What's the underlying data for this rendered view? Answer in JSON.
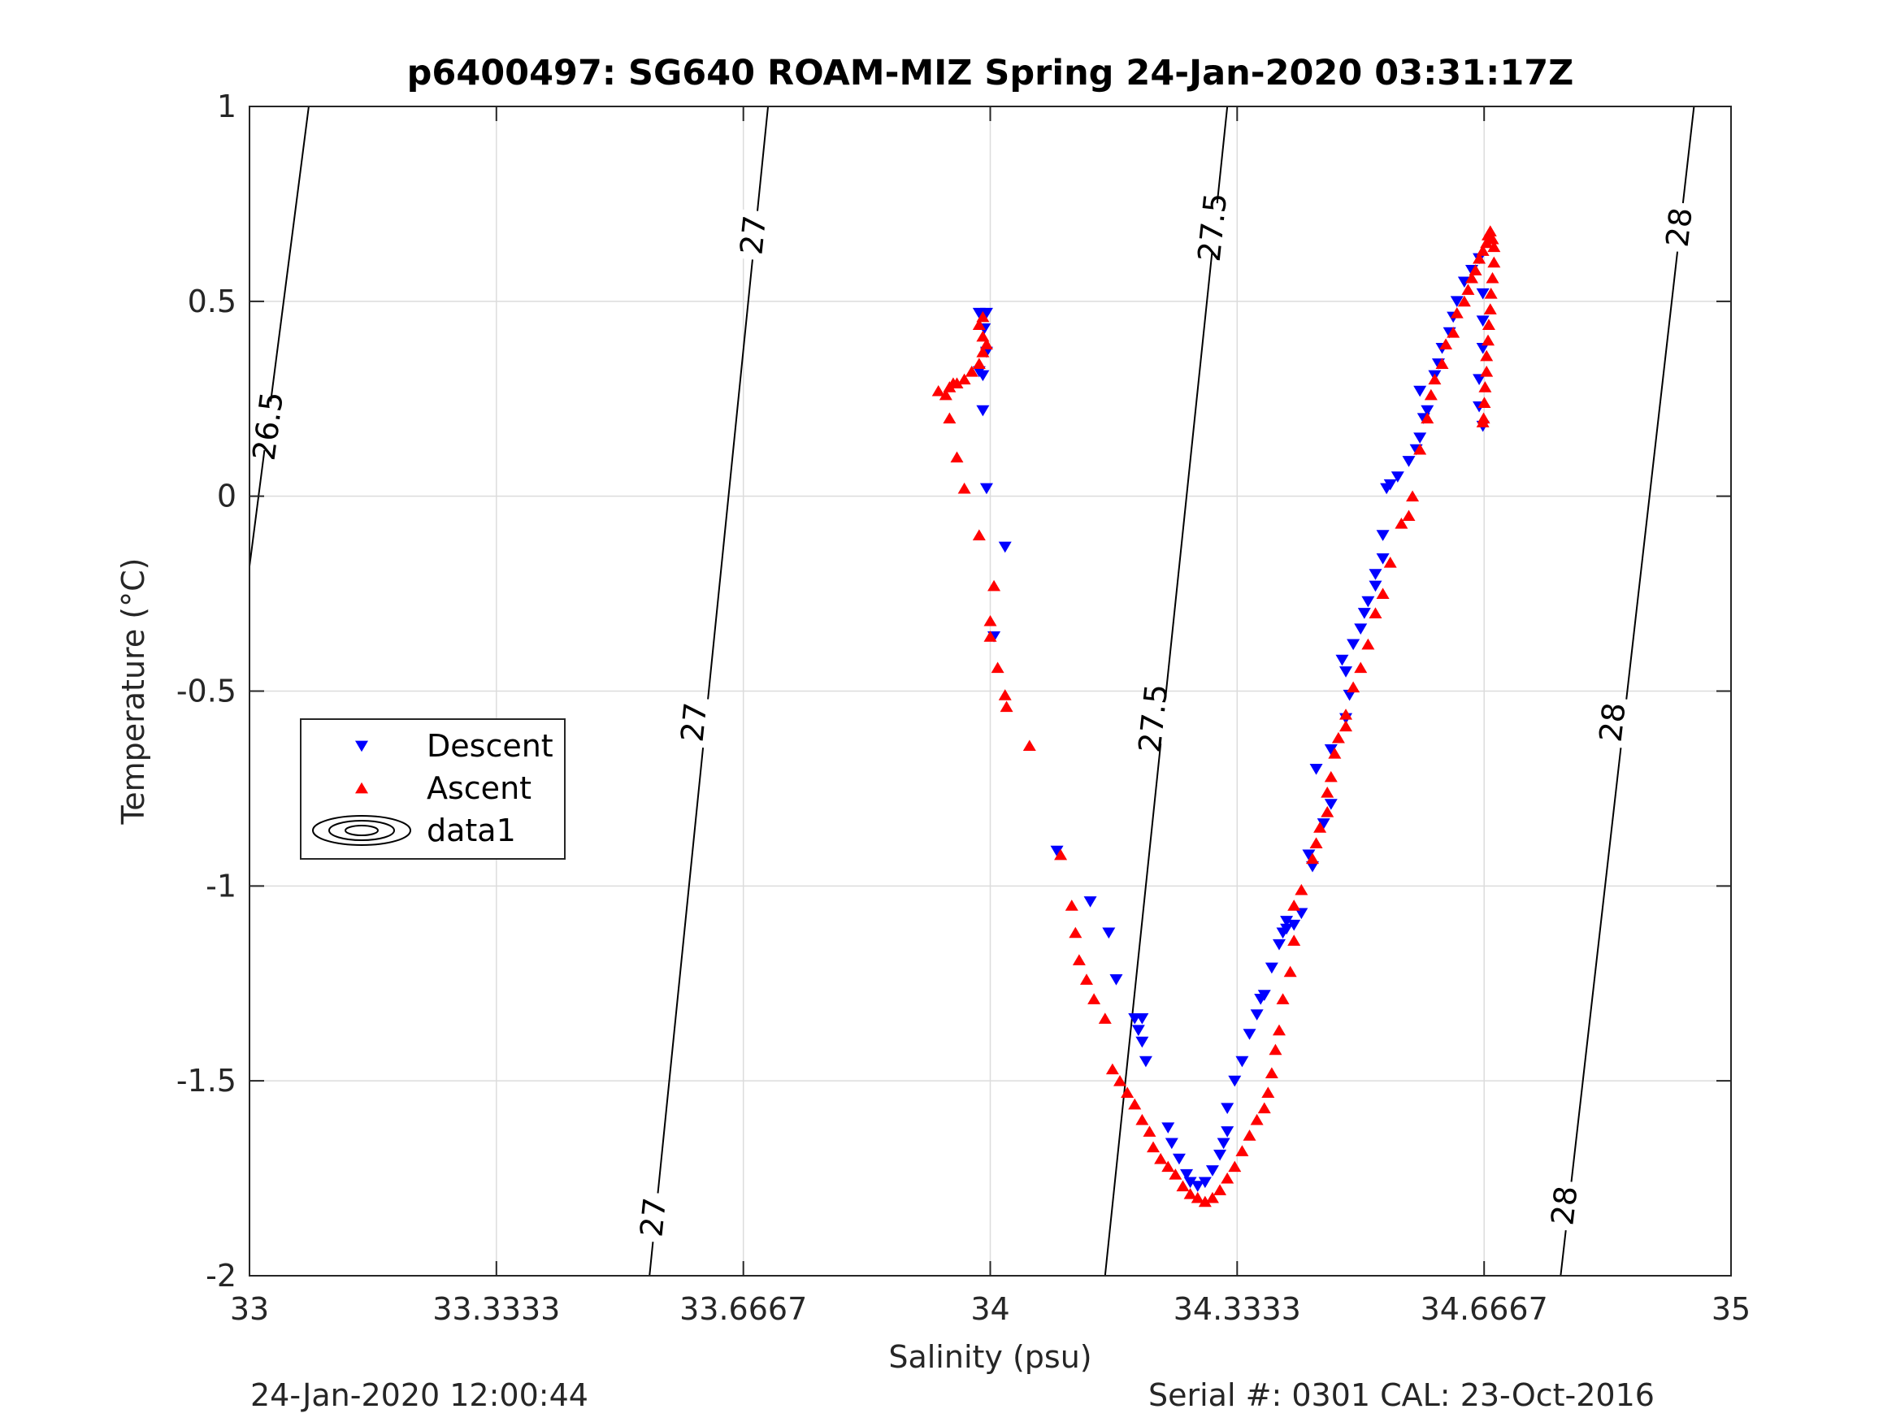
{
  "footer": {
    "left": "24-Jan-2020 12:00:44",
    "right": "Serial #: 0301  CAL: 23-Oct-2016"
  },
  "chart_data": {
    "type": "scatter",
    "title": "p6400497: SG640 ROAM-MIZ Spring 24-Jan-2020 03:31:17Z",
    "xlabel": "Salinity (psu)",
    "ylabel": "Temperature (°C)",
    "xlim": [
      33,
      35
    ],
    "ylim": [
      -2,
      1
    ],
    "xticks": [
      33,
      33.3333,
      33.6667,
      34,
      34.3333,
      34.6667,
      35
    ],
    "xtick_labels": [
      "33",
      "33.3333",
      "33.6667",
      "34",
      "34.3333",
      "34.6667",
      "35"
    ],
    "yticks": [
      -2,
      -1.5,
      -1,
      -0.5,
      0,
      0.5,
      1
    ],
    "ytick_labels": [
      "-2",
      "-1.5",
      "-1",
      "-0.5",
      "0",
      "0.5",
      "1"
    ],
    "grid": true,
    "legend_position": "left",
    "legend": [
      {
        "label": "Descent",
        "marker": "down-triangle",
        "color": "#0000ff"
      },
      {
        "label": "Ascent",
        "marker": "up-triangle",
        "color": "#ff0000"
      },
      {
        "label": "data1",
        "marker": "contour",
        "color": "#000000"
      }
    ],
    "density_contours": [
      {
        "label": "26.5",
        "points": [
          [
            33.0,
            -0.18
          ],
          [
            33.08,
            1.0
          ]
        ],
        "label_at": [
          33.025,
          0.18
        ]
      },
      {
        "label": "27",
        "points": [
          [
            33.54,
            -2.0
          ],
          [
            33.7,
            1.0
          ]
        ],
        "label_at_list": [
          [
            33.545,
            -1.85
          ],
          [
            33.6,
            -0.58
          ],
          [
            33.68,
            0.67
          ]
        ]
      },
      {
        "label": "27.5",
        "points": [
          [
            34.155,
            -2.0
          ],
          [
            34.32,
            1.0
          ]
        ],
        "label_at_list": [
          [
            34.22,
            -0.57
          ],
          [
            34.3,
            0.69
          ]
        ]
      },
      {
        "label": "28",
        "points": [
          [
            34.77,
            -2.0
          ],
          [
            34.95,
            1.0
          ]
        ],
        "label_at_list": [
          [
            34.775,
            -1.82
          ],
          [
            34.84,
            -0.58
          ],
          [
            34.93,
            0.69
          ]
        ]
      }
    ],
    "series": [
      {
        "name": "Descent",
        "marker": "down-triangle",
        "color": "#0000ff",
        "points": [
          [
            33.985,
            0.47
          ],
          [
            33.995,
            0.47
          ],
          [
            33.992,
            0.43
          ],
          [
            33.995,
            0.37
          ],
          [
            33.985,
            0.32
          ],
          [
            33.99,
            0.31
          ],
          [
            33.99,
            0.22
          ],
          [
            33.995,
            0.02
          ],
          [
            34.02,
            -0.13
          ],
          [
            34.005,
            -0.36
          ],
          [
            34.09,
            -0.91
          ],
          [
            34.135,
            -1.04
          ],
          [
            34.16,
            -1.12
          ],
          [
            34.17,
            -1.24
          ],
          [
            34.195,
            -1.34
          ],
          [
            34.205,
            -1.34
          ],
          [
            34.2,
            -1.37
          ],
          [
            34.205,
            -1.4
          ],
          [
            34.21,
            -1.45
          ],
          [
            34.24,
            -1.62
          ],
          [
            34.245,
            -1.66
          ],
          [
            34.255,
            -1.7
          ],
          [
            34.265,
            -1.74
          ],
          [
            34.27,
            -1.76
          ],
          [
            34.28,
            -1.77
          ],
          [
            34.29,
            -1.76
          ],
          [
            34.3,
            -1.73
          ],
          [
            34.31,
            -1.69
          ],
          [
            34.315,
            -1.66
          ],
          [
            34.32,
            -1.63
          ],
          [
            34.32,
            -1.57
          ],
          [
            34.33,
            -1.5
          ],
          [
            34.34,
            -1.45
          ],
          [
            34.35,
            -1.38
          ],
          [
            34.36,
            -1.33
          ],
          [
            34.365,
            -1.29
          ],
          [
            34.37,
            -1.28
          ],
          [
            34.38,
            -1.21
          ],
          [
            34.39,
            -1.15
          ],
          [
            34.395,
            -1.12
          ],
          [
            34.4,
            -1.11
          ],
          [
            34.41,
            -1.1
          ],
          [
            34.4,
            -1.09
          ],
          [
            34.42,
            -1.07
          ],
          [
            34.435,
            -0.95
          ],
          [
            34.43,
            -0.92
          ],
          [
            34.45,
            -0.84
          ],
          [
            34.46,
            -0.79
          ],
          [
            34.44,
            -0.7
          ],
          [
            34.46,
            -0.65
          ],
          [
            34.48,
            -0.57
          ],
          [
            34.485,
            -0.51
          ],
          [
            34.475,
            -0.42
          ],
          [
            34.48,
            -0.45
          ],
          [
            34.49,
            -0.38
          ],
          [
            34.5,
            -0.34
          ],
          [
            34.505,
            -0.3
          ],
          [
            34.51,
            -0.27
          ],
          [
            34.52,
            -0.23
          ],
          [
            34.52,
            -0.2
          ],
          [
            34.53,
            -0.16
          ],
          [
            34.53,
            -0.1
          ],
          [
            34.535,
            0.02
          ],
          [
            34.54,
            0.03
          ],
          [
            34.55,
            0.05
          ],
          [
            34.565,
            0.09
          ],
          [
            34.575,
            0.12
          ],
          [
            34.58,
            0.15
          ],
          [
            34.585,
            0.2
          ],
          [
            34.59,
            0.22
          ],
          [
            34.58,
            0.27
          ],
          [
            34.6,
            0.31
          ],
          [
            34.605,
            0.34
          ],
          [
            34.61,
            0.38
          ],
          [
            34.62,
            0.42
          ],
          [
            34.625,
            0.46
          ],
          [
            34.63,
            0.5
          ],
          [
            34.64,
            0.55
          ],
          [
            34.65,
            0.58
          ],
          [
            34.66,
            0.61
          ],
          [
            34.665,
            0.52
          ],
          [
            34.665,
            0.45
          ],
          [
            34.665,
            0.38
          ],
          [
            34.66,
            0.3
          ],
          [
            34.66,
            0.23
          ],
          [
            34.665,
            0.18
          ]
        ]
      },
      {
        "name": "Ascent",
        "marker": "up-triangle",
        "color": "#ff0000",
        "points": [
          [
            33.99,
            0.46
          ],
          [
            33.985,
            0.44
          ],
          [
            33.99,
            0.41
          ],
          [
            33.995,
            0.39
          ],
          [
            33.99,
            0.37
          ],
          [
            33.985,
            0.34
          ],
          [
            33.975,
            0.32
          ],
          [
            33.965,
            0.3
          ],
          [
            33.955,
            0.29
          ],
          [
            33.945,
            0.28
          ],
          [
            33.93,
            0.27
          ],
          [
            33.95,
            0.29
          ],
          [
            33.94,
            0.26
          ],
          [
            33.945,
            0.2
          ],
          [
            33.955,
            0.1
          ],
          [
            33.965,
            0.02
          ],
          [
            33.985,
            -0.1
          ],
          [
            34.005,
            -0.23
          ],
          [
            34.0,
            -0.32
          ],
          [
            34.0,
            -0.36
          ],
          [
            34.01,
            -0.44
          ],
          [
            34.02,
            -0.51
          ],
          [
            34.022,
            -0.54
          ],
          [
            34.053,
            -0.64
          ],
          [
            34.095,
            -0.92
          ],
          [
            34.11,
            -1.05
          ],
          [
            34.115,
            -1.12
          ],
          [
            34.12,
            -1.19
          ],
          [
            34.13,
            -1.24
          ],
          [
            34.14,
            -1.29
          ],
          [
            34.155,
            -1.34
          ],
          [
            34.165,
            -1.47
          ],
          [
            34.175,
            -1.5
          ],
          [
            34.185,
            -1.53
          ],
          [
            34.195,
            -1.56
          ],
          [
            34.205,
            -1.6
          ],
          [
            34.215,
            -1.63
          ],
          [
            34.22,
            -1.67
          ],
          [
            34.23,
            -1.7
          ],
          [
            34.24,
            -1.72
          ],
          [
            34.25,
            -1.74
          ],
          [
            34.26,
            -1.77
          ],
          [
            34.27,
            -1.79
          ],
          [
            34.28,
            -1.8
          ],
          [
            34.29,
            -1.81
          ],
          [
            34.3,
            -1.8
          ],
          [
            34.31,
            -1.78
          ],
          [
            34.32,
            -1.75
          ],
          [
            34.33,
            -1.72
          ],
          [
            34.34,
            -1.68
          ],
          [
            34.35,
            -1.64
          ],
          [
            34.36,
            -1.6
          ],
          [
            34.37,
            -1.57
          ],
          [
            34.375,
            -1.53
          ],
          [
            34.38,
            -1.48
          ],
          [
            34.385,
            -1.42
          ],
          [
            34.39,
            -1.37
          ],
          [
            34.395,
            -1.29
          ],
          [
            34.405,
            -1.22
          ],
          [
            34.41,
            -1.14
          ],
          [
            34.41,
            -1.05
          ],
          [
            34.42,
            -1.01
          ],
          [
            34.435,
            -0.93
          ],
          [
            34.44,
            -0.89
          ],
          [
            34.445,
            -0.85
          ],
          [
            34.455,
            -0.81
          ],
          [
            34.455,
            -0.76
          ],
          [
            34.46,
            -0.72
          ],
          [
            34.465,
            -0.66
          ],
          [
            34.47,
            -0.62
          ],
          [
            34.48,
            -0.59
          ],
          [
            34.48,
            -0.56
          ],
          [
            34.49,
            -0.49
          ],
          [
            34.5,
            -0.44
          ],
          [
            34.51,
            -0.38
          ],
          [
            34.52,
            -0.3
          ],
          [
            34.53,
            -0.25
          ],
          [
            34.54,
            -0.17
          ],
          [
            34.555,
            -0.07
          ],
          [
            34.565,
            -0.05
          ],
          [
            34.57,
            0.0
          ],
          [
            34.58,
            0.12
          ],
          [
            34.59,
            0.2
          ],
          [
            34.595,
            0.26
          ],
          [
            34.6,
            0.3
          ],
          [
            34.61,
            0.34
          ],
          [
            34.615,
            0.39
          ],
          [
            34.625,
            0.42
          ],
          [
            34.63,
            0.47
          ],
          [
            34.64,
            0.5
          ],
          [
            34.645,
            0.53
          ],
          [
            34.65,
            0.56
          ],
          [
            34.655,
            0.58
          ],
          [
            34.66,
            0.61
          ],
          [
            34.665,
            0.63
          ],
          [
            34.67,
            0.65
          ],
          [
            34.672,
            0.67
          ],
          [
            34.675,
            0.68
          ],
          [
            34.678,
            0.66
          ],
          [
            34.68,
            0.64
          ],
          [
            34.68,
            0.6
          ],
          [
            34.678,
            0.56
          ],
          [
            34.676,
            0.52
          ],
          [
            34.675,
            0.48
          ],
          [
            34.673,
            0.44
          ],
          [
            34.672,
            0.4
          ],
          [
            34.67,
            0.36
          ],
          [
            34.67,
            0.32
          ],
          [
            34.668,
            0.28
          ],
          [
            34.667,
            0.24
          ],
          [
            34.666,
            0.2
          ],
          [
            34.665,
            0.19
          ]
        ]
      }
    ]
  }
}
